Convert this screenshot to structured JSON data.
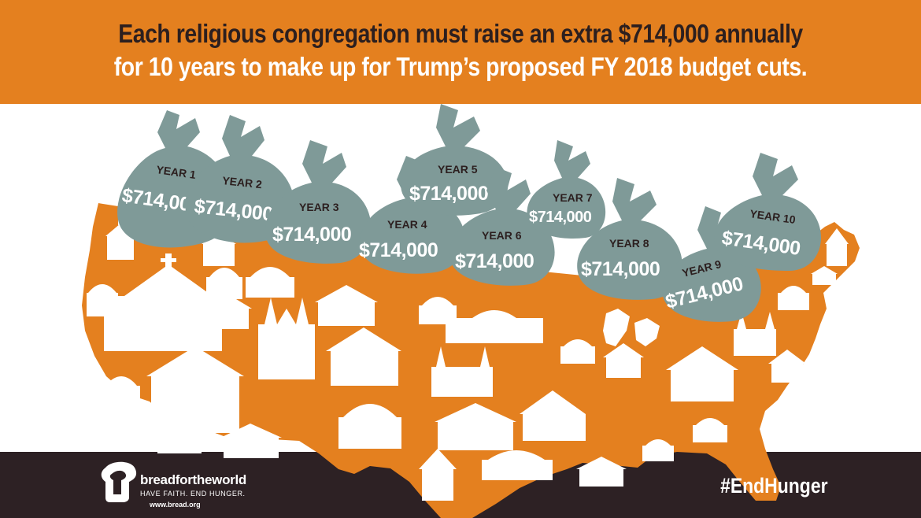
{
  "headline": {
    "line1": "Each religious congregation must raise an extra $714,000 annually",
    "line2": "for 10 years to make up for Trump’s proposed FY 2018 budget cuts."
  },
  "money_bags": [
    {
      "year": "YEAR 1",
      "amount": "$714,000"
    },
    {
      "year": "YEAR 2",
      "amount": "$714,000"
    },
    {
      "year": "YEAR 3",
      "amount": "$714,000"
    },
    {
      "year": "YEAR 4",
      "amount": "$714,000"
    },
    {
      "year": "YEAR 5",
      "amount": "$714,000"
    },
    {
      "year": "YEAR 6",
      "amount": "$714,000"
    },
    {
      "year": "YEAR 7",
      "amount": "$714,000"
    },
    {
      "year": "YEAR 8",
      "amount": "$714,000"
    },
    {
      "year": "YEAR 9",
      "amount": "$714,000"
    },
    {
      "year": "YEAR 10",
      "amount": "$714,000"
    }
  ],
  "logo": {
    "name": "breadfortheworld",
    "tagline": "HAVE FAITH. END HUNGER.",
    "url": "www.bread.org"
  },
  "hashtag": "#EndHunger",
  "colors": {
    "orange": "#e4801f",
    "dark_brown": "#2d2124",
    "bag_gray": "#7f9a98",
    "white": "#ffffff"
  }
}
